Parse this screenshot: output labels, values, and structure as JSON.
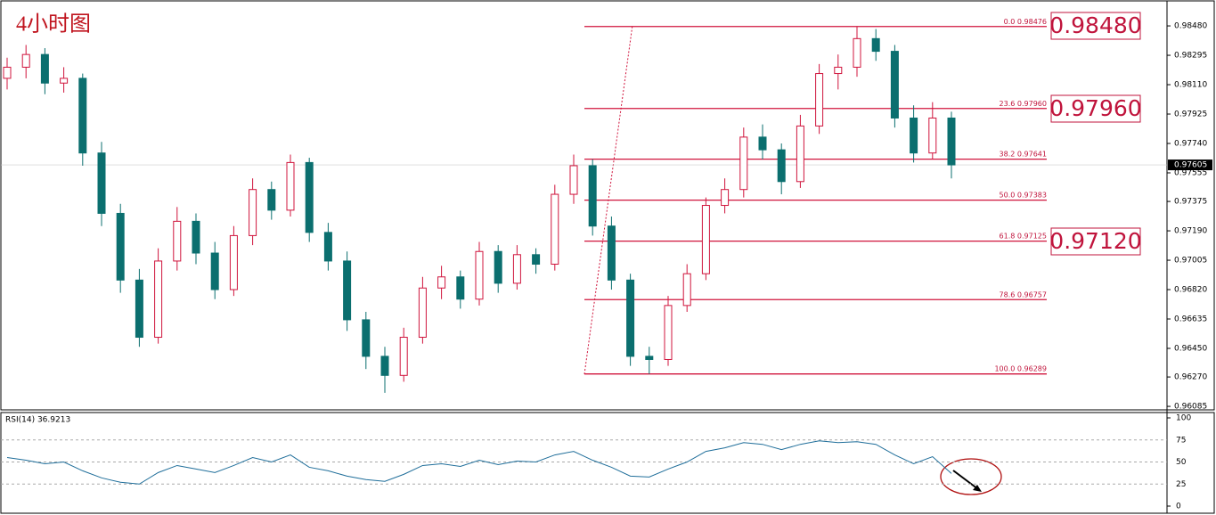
{
  "chart_data": {
    "type": "candlestick",
    "title": "4小时图",
    "open": [
      0.9815,
      0.9822,
      0.983,
      0.9812,
      0.9815,
      0.9768,
      0.973,
      0.9688,
      0.9652,
      0.97,
      0.9725,
      0.9705,
      0.9682,
      0.9716,
      0.9745,
      0.9732,
      0.9762,
      0.9718,
      0.97,
      0.9663,
      0.964,
      0.9628,
      0.9652,
      0.9683,
      0.969,
      0.9676,
      0.9706,
      0.9686,
      0.9704,
      0.9698,
      0.9742,
      0.976,
      0.9722,
      0.9688,
      0.964,
      0.9638,
      0.9672,
      0.9692,
      0.9735,
      0.9745,
      0.9778,
      0.977,
      0.975,
      0.9785,
      0.9818,
      0.9822,
      0.984,
      0.9832,
      0.979,
      0.9768,
      0.979
    ],
    "high": [
      0.9828,
      0.9836,
      0.9834,
      0.9822,
      0.9818,
      0.9775,
      0.9736,
      0.9695,
      0.9708,
      0.9734,
      0.973,
      0.9712,
      0.9722,
      0.9752,
      0.975,
      0.9767,
      0.9765,
      0.9724,
      0.9706,
      0.9668,
      0.9646,
      0.9658,
      0.969,
      0.9697,
      0.9694,
      0.9712,
      0.971,
      0.971,
      0.9708,
      0.9748,
      0.9767,
      0.9764,
      0.9728,
      0.9692,
      0.9646,
      0.9678,
      0.9698,
      0.974,
      0.9752,
      0.9784,
      0.9786,
      0.9774,
      0.9792,
      0.9824,
      0.983,
      0.98476,
      0.9846,
      0.9836,
      0.9798,
      0.98,
      0.9794
    ],
    "low": [
      0.9808,
      0.9815,
      0.9805,
      0.9806,
      0.976,
      0.9722,
      0.968,
      0.9646,
      0.9648,
      0.9694,
      0.9698,
      0.9676,
      0.9678,
      0.971,
      0.9726,
      0.9728,
      0.9712,
      0.9694,
      0.9656,
      0.9632,
      0.9617,
      0.9624,
      0.9648,
      0.9676,
      0.967,
      0.9672,
      0.968,
      0.9682,
      0.9692,
      0.9694,
      0.9736,
      0.9716,
      0.9682,
      0.9634,
      0.96289,
      0.9634,
      0.9668,
      0.9688,
      0.973,
      0.974,
      0.9764,
      0.9742,
      0.9746,
      0.978,
      0.9808,
      0.9816,
      0.9826,
      0.9784,
      0.9762,
      0.9764,
      0.9752
    ],
    "close": [
      0.9822,
      0.983,
      0.9812,
      0.9815,
      0.9768,
      0.973,
      0.9688,
      0.9652,
      0.97,
      0.9725,
      0.9705,
      0.9682,
      0.9716,
      0.9745,
      0.9732,
      0.9762,
      0.9718,
      0.97,
      0.9663,
      0.964,
      0.9628,
      0.9652,
      0.9683,
      0.969,
      0.9676,
      0.9706,
      0.9686,
      0.9704,
      0.9698,
      0.9742,
      0.976,
      0.9722,
      0.9688,
      0.964,
      0.9638,
      0.9672,
      0.9692,
      0.9735,
      0.9745,
      0.9778,
      0.977,
      0.975,
      0.9785,
      0.9818,
      0.9822,
      0.984,
      0.9832,
      0.979,
      0.9768,
      0.979,
      0.97605
    ],
    "up_color": "#d0143c",
    "down_color": "#0b6f6f",
    "ylim": [
      0.96063,
      0.98643
    ],
    "yticks": [
      {
        "value": 0.9848,
        "label": "0.98480"
      },
      0.98295,
      {
        "value": 0.9811,
        "label": "0.98110"
      },
      0.97925,
      {
        "value": 0.9774,
        "label": "0.97740"
      },
      0.97555,
      0.97375,
      {
        "value": 0.9719,
        "label": "0.97190"
      },
      0.97005,
      {
        "value": 0.9682,
        "label": "0.96820"
      },
      0.96635,
      {
        "value": 0.9645,
        "label": "0.96450"
      },
      {
        "value": 0.9627,
        "label": "0.96270"
      },
      0.96085
    ],
    "current_price": 0.97605,
    "fib_levels": [
      {
        "ratio": "0.0",
        "price": 0.98476
      },
      {
        "ratio": "23.6",
        "price": {
          "value": 0.9796,
          "label": "0.97960"
        }
      },
      {
        "ratio": "38.2",
        "price": 0.97641
      },
      {
        "ratio": "50.0",
        "price": 0.97383
      },
      {
        "ratio": "61.8",
        "price": 0.97125
      },
      {
        "ratio": "78.6",
        "price": 0.96757
      },
      {
        "ratio": "100.0",
        "price": 0.96289
      }
    ],
    "annotations": [
      "0.98480",
      "0.97960",
      "0.97120"
    ],
    "rsi": {
      "label": "RSI(14) 36.9213",
      "color": "#1f6e9a",
      "ylim": [
        0,
        100
      ],
      "yticks": [
        0,
        25,
        50,
        75,
        100
      ],
      "values": [
        55,
        52,
        48,
        50,
        40,
        32,
        27,
        25,
        38,
        46,
        42,
        38,
        46,
        55,
        50,
        58,
        44,
        40,
        34,
        30,
        28,
        36,
        46,
        48,
        45,
        52,
        47,
        51,
        50,
        58,
        62,
        52,
        44,
        34,
        33,
        42,
        50,
        62,
        66,
        72,
        70,
        64,
        70,
        74,
        72,
        73,
        70,
        58,
        48,
        56,
        37
      ]
    }
  }
}
